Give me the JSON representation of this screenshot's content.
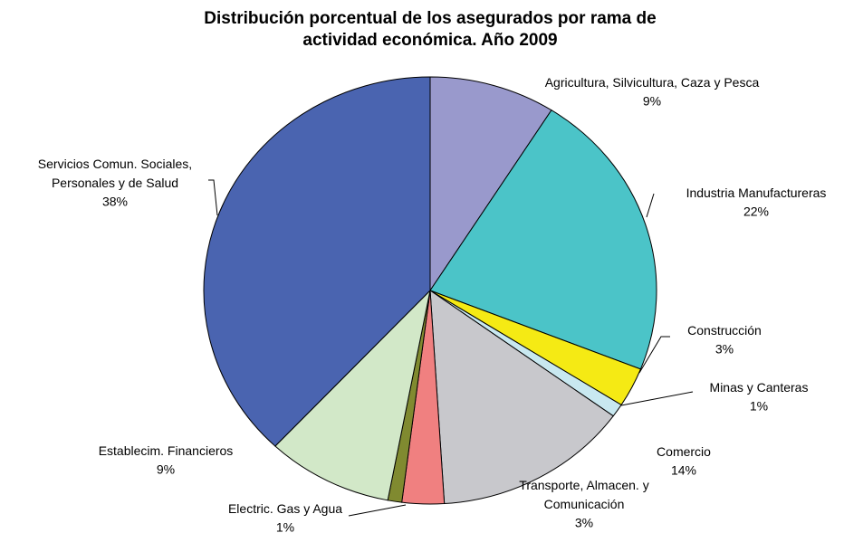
{
  "chart_data": {
    "type": "pie",
    "title": "Distribución porcentual de los asegurados por rama de actividad económica. Año 2009",
    "categories": [
      "Agricultura, Silvicultura, Caza y Pesca",
      "Industria Manufactureras",
      "Construcción",
      "Minas y Canteras",
      "Comercio",
      "Transporte, Almacen. y Comunicación",
      "Electric. Gas y Agua",
      "Establecim. Financieros",
      "Servicios Comun. Sociales, Personales y de Salud"
    ],
    "values": [
      9,
      22,
      3,
      1,
      14,
      3,
      1,
      9,
      38
    ],
    "value_labels": [
      "9%",
      "22%",
      "3%",
      "1%",
      "14%",
      "3%",
      "1%",
      "9%",
      "38%"
    ],
    "colors": [
      "#9999cc",
      "#4bc4c8",
      "#f5ea14",
      "#c8e8f0",
      "#c8c8cc",
      "#f08080",
      "#808a30",
      "#d2e8c8",
      "#4a64b0"
    ]
  }
}
